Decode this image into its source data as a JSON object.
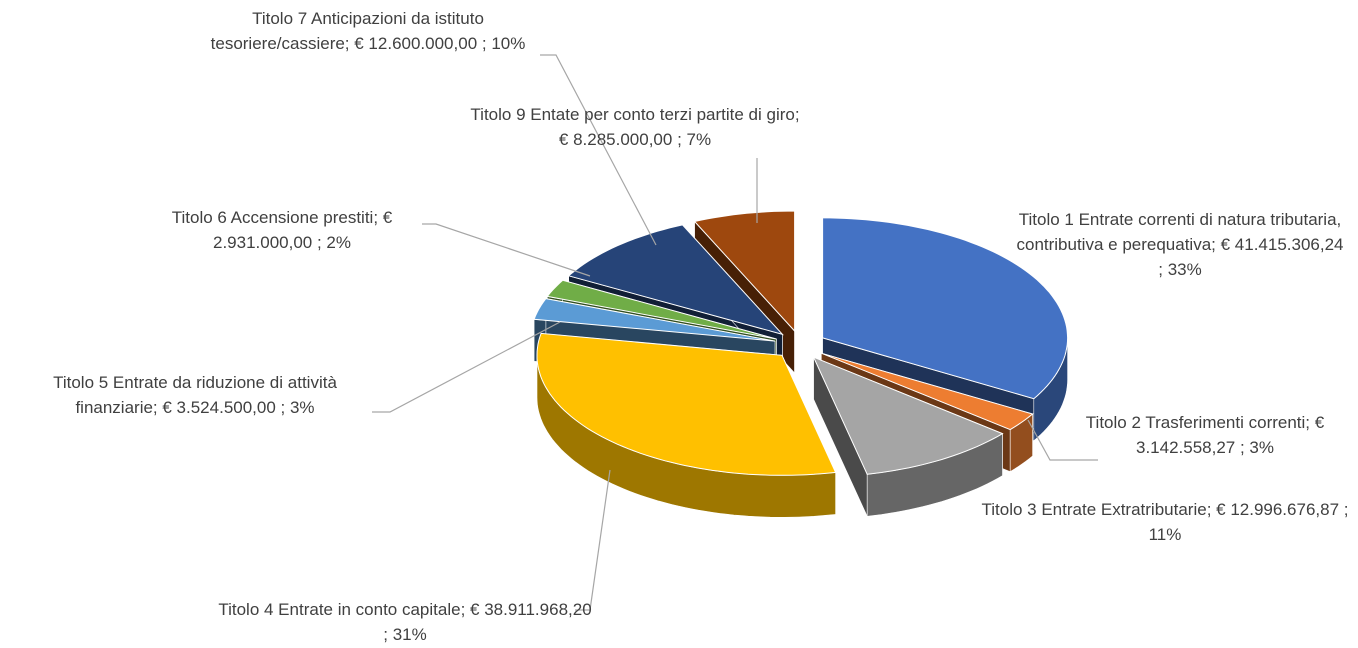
{
  "chart_data": {
    "type": "pie",
    "data_labels": [
      "Titolo 1 Entrate correnti di natura tributaria, contributiva e perequativa;  € 41.415.306,24 ; 33%",
      "Titolo 2 Trasferimenti correnti;  € 3.142.558,27 ; 3%",
      "Titolo 3 Entrate Extratributarie;  € 12.996.676,87 ; 11%",
      "Titolo 4 Entrate in conto capitale;  € 38.911.968,20 ; 31%",
      "Titolo 5 Entrate da riduzione di attività finanziarie;  € 3.524.500,00 ; 3%",
      "Titolo 6 Accensione prestiti;  € 2.931.000,00 ; 2%",
      "Titolo 7 Anticipazioni da istituto tesoriere/cassiere;  € 12.600.000,00 ; 10%",
      "Titolo 9 Entate per conto terzi partite di giro;  € 8.285.000,00 ; 7%"
    ],
    "values": [
      41415306.24,
      3142558.27,
      12996676.87,
      38911968.2,
      3524500.0,
      2931000.0,
      12600000.0,
      8285000.0
    ],
    "colors": [
      "#4472c4",
      "#ed7d31",
      "#a5a5a5",
      "#ffc000",
      "#5b9bd5",
      "#70ad47",
      "#264478",
      "#9e480e"
    ]
  }
}
